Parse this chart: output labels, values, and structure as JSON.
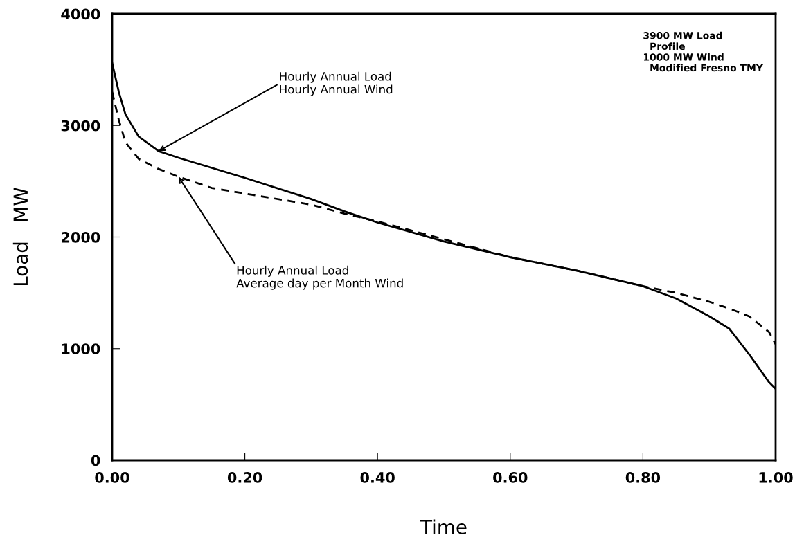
{
  "chart_data": {
    "type": "line",
    "xlabel": "Time",
    "ylabel": "Load   MW",
    "x": [
      0.0,
      0.01,
      0.02,
      0.04,
      0.07,
      0.1,
      0.15,
      0.2,
      0.3,
      0.35,
      0.4,
      0.5,
      0.6,
      0.7,
      0.8,
      0.85,
      0.9,
      0.93,
      0.96,
      0.99,
      1.0
    ],
    "series": [
      {
        "color": "#000000",
        "line_style": "solid",
        "values": [
          3560,
          3300,
          3100,
          2900,
          2770,
          2710,
          2620,
          2530,
          2340,
          2230,
          2130,
          1960,
          1820,
          1700,
          1560,
          1450,
          1290,
          1180,
          950,
          700,
          640
        ]
      },
      {
        "color": "#000000",
        "line_style": "dashed",
        "values": [
          3300,
          3050,
          2850,
          2700,
          2610,
          2540,
          2440,
          2390,
          2290,
          2210,
          2140,
          1980,
          1820,
          1700,
          1560,
          1500,
          1420,
          1360,
          1290,
          1150,
          1040
        ]
      }
    ],
    "xlim": [
      0,
      1
    ],
    "ylim": [
      0,
      4000
    ],
    "xticks": [
      {
        "value": 0,
        "label": "0.00"
      },
      {
        "value": 0.2,
        "label": "0.20"
      },
      {
        "value": 0.4,
        "label": "0.40"
      },
      {
        "value": 0.6,
        "label": "0.60"
      },
      {
        "value": 0.8,
        "label": "0.80"
      },
      {
        "value": 1,
        "label": "1.00"
      }
    ],
    "yticks": [
      0,
      1000,
      2000,
      3000,
      4000
    ],
    "grid": false,
    "legend": false,
    "marker": "none",
    "annotations": [
      {
        "text": "Hourly Annual Load\nHourly Annual Wind",
        "x": 0.07,
        "y": 2770
      },
      {
        "text": "Hourly Annual Load\nAverage day per Month Wind",
        "x": 0.1,
        "y": 2540
      },
      "3900 MW Load\n  Profile\n1000 MW Wind\n  Modified Fresno TMY"
    ]
  }
}
